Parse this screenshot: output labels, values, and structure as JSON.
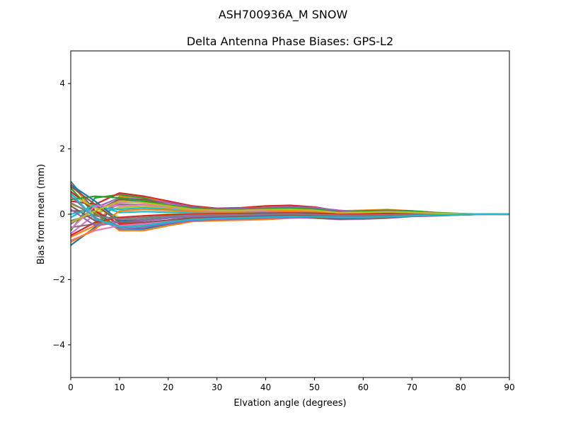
{
  "chart_data": {
    "type": "line",
    "suptitle": "ASH700936A_M    SNOW",
    "title": "Delta Antenna Phase Biases: GPS-L2",
    "xlabel": "Elvation angle (degrees)",
    "ylabel": "Bias from mean (mm)",
    "xlim": [
      0,
      90
    ],
    "ylim": [
      -5,
      5
    ],
    "xticks": [
      0,
      10,
      20,
      30,
      40,
      50,
      60,
      70,
      80,
      90
    ],
    "yticks": [
      -4,
      -2,
      0,
      2,
      4
    ],
    "ytick_labels": [
      "−4",
      "−2",
      "0",
      "2",
      "4"
    ],
    "grid": false,
    "colors": [
      "#1f77b4",
      "#ff7f0e",
      "#2ca02c",
      "#d62728",
      "#9467bd",
      "#8c564b",
      "#e377c2",
      "#7f7f7f",
      "#bcbd22",
      "#17becf"
    ],
    "x": [
      0,
      5,
      10,
      15,
      20,
      25,
      30,
      35,
      40,
      45,
      50,
      55,
      60,
      65,
      70,
      75,
      80,
      85,
      90
    ],
    "series": [
      {
        "values": [
          -0.95,
          -0.4,
          0.45,
          0.4,
          0.25,
          0.15,
          0.12,
          0.12,
          0.15,
          0.18,
          0.15,
          0.08,
          0.1,
          0.12,
          0.08,
          0.04,
          0.01,
          0,
          0
        ]
      },
      {
        "values": [
          -0.7,
          -0.35,
          0.55,
          0.5,
          0.35,
          0.2,
          0.15,
          0.15,
          0.2,
          0.22,
          0.18,
          0.1,
          0.12,
          0.14,
          0.1,
          0.05,
          0.01,
          0,
          0
        ]
      },
      {
        "values": [
          -0.5,
          0.5,
          0.6,
          0.5,
          0.3,
          0.18,
          0.12,
          0.14,
          0.18,
          0.2,
          0.16,
          0.08,
          0.1,
          0.12,
          0.1,
          0.05,
          0.02,
          0,
          0
        ]
      },
      {
        "values": [
          0.4,
          0.3,
          0.65,
          0.55,
          0.4,
          0.25,
          0.18,
          0.2,
          0.25,
          0.27,
          0.22,
          0.1,
          0.05,
          0.02,
          -0.02,
          -0.04,
          -0.02,
          0,
          0
        ]
      },
      {
        "values": [
          -0.3,
          0.2,
          0.5,
          0.45,
          0.35,
          0.22,
          0.16,
          0.18,
          0.2,
          0.22,
          0.2,
          0.12,
          0.06,
          0.03,
          0,
          -0.03,
          -0.02,
          0,
          0
        ]
      },
      {
        "values": [
          0.1,
          0.1,
          0.45,
          0.45,
          0.3,
          0.2,
          0.15,
          0.15,
          0.17,
          0.18,
          0.15,
          0.05,
          0,
          -0.02,
          -0.03,
          -0.03,
          -0.02,
          0,
          0
        ]
      },
      {
        "values": [
          -0.6,
          0.0,
          0.35,
          0.38,
          0.3,
          0.18,
          0.14,
          0.12,
          0.14,
          0.15,
          0.12,
          0.04,
          0.02,
          0.01,
          -0.01,
          -0.02,
          -0.01,
          0,
          0
        ]
      },
      {
        "values": [
          -0.2,
          0.0,
          0.3,
          0.3,
          0.22,
          0.12,
          0.1,
          0.1,
          0.12,
          0.12,
          0.1,
          0.02,
          0.03,
          0.05,
          0.05,
          0.03,
          0.01,
          0,
          0
        ]
      },
      {
        "values": [
          0.3,
          0.05,
          0.2,
          0.25,
          0.18,
          0.1,
          0.08,
          0.08,
          0.1,
          0.1,
          0.08,
          0.02,
          0.04,
          0.06,
          0.05,
          0.03,
          0.01,
          0,
          0
        ]
      },
      {
        "values": [
          0.0,
          0.2,
          0.15,
          0.2,
          0.15,
          0.08,
          0.06,
          0.05,
          0.07,
          0.08,
          0.05,
          0.0,
          0.02,
          0.04,
          0.03,
          0.02,
          0.0,
          0,
          0
        ]
      },
      {
        "values": [
          1.0,
          0.1,
          -0.45,
          -0.45,
          -0.3,
          -0.2,
          -0.18,
          -0.15,
          -0.15,
          -0.1,
          -0.08,
          -0.05,
          -0.08,
          -0.08,
          -0.05,
          -0.03,
          -0.01,
          0,
          0
        ]
      },
      {
        "values": [
          0.95,
          0.05,
          -0.5,
          -0.5,
          -0.35,
          -0.22,
          -0.2,
          -0.18,
          -0.16,
          -0.12,
          -0.1,
          -0.08,
          -0.1,
          -0.1,
          -0.06,
          -0.03,
          -0.01,
          0,
          0
        ]
      },
      {
        "values": [
          0.8,
          0.0,
          -0.4,
          -0.35,
          -0.25,
          -0.18,
          -0.15,
          -0.12,
          -0.1,
          -0.08,
          -0.06,
          -0.04,
          -0.06,
          -0.05,
          -0.03,
          -0.02,
          0,
          0,
          0
        ]
      },
      {
        "values": [
          0.7,
          0.1,
          -0.3,
          -0.3,
          -0.22,
          -0.15,
          -0.12,
          -0.1,
          -0.08,
          -0.05,
          -0.04,
          -0.02,
          -0.03,
          -0.03,
          -0.02,
          -0.01,
          0,
          0,
          0
        ]
      },
      {
        "values": [
          0.55,
          -0.1,
          -0.45,
          -0.4,
          -0.28,
          -0.2,
          -0.16,
          -0.14,
          -0.12,
          -0.1,
          -0.12,
          -0.16,
          -0.15,
          -0.12,
          -0.07,
          -0.05,
          -0.02,
          0,
          0
        ]
      },
      {
        "values": [
          0.25,
          -0.2,
          -0.35,
          -0.3,
          -0.2,
          -0.14,
          -0.1,
          -0.08,
          -0.06,
          -0.05,
          -0.1,
          -0.14,
          -0.12,
          -0.1,
          -0.06,
          -0.04,
          -0.02,
          0,
          0
        ]
      },
      {
        "values": [
          -0.8,
          -0.5,
          -0.35,
          -0.3,
          -0.2,
          -0.12,
          -0.1,
          -0.08,
          -0.05,
          -0.04,
          -0.06,
          -0.08,
          -0.08,
          -0.06,
          -0.04,
          -0.02,
          -0.01,
          0,
          0
        ]
      },
      {
        "values": [
          -0.4,
          -0.3,
          -0.2,
          -0.15,
          -0.1,
          -0.05,
          -0.03,
          -0.02,
          0.0,
          0.02,
          0.0,
          -0.02,
          -0.02,
          -0.02,
          -0.01,
          0,
          0,
          0,
          0
        ]
      },
      {
        "values": [
          0.6,
          0.2,
          -0.1,
          -0.05,
          0.0,
          0.02,
          0.03,
          0.03,
          0.04,
          0.05,
          0.03,
          0.0,
          -0.01,
          -0.01,
          0,
          0,
          0,
          0,
          0
        ]
      },
      {
        "values": [
          -0.1,
          0.3,
          0.05,
          0.08,
          0.06,
          0.05,
          0.05,
          0.05,
          0.06,
          0.08,
          0.06,
          0.02,
          0.0,
          0.0,
          0.0,
          0.0,
          0,
          0,
          0
        ]
      },
      {
        "values": [
          0.9,
          0.4,
          -0.2,
          -0.2,
          -0.12,
          -0.08,
          -0.06,
          -0.05,
          -0.04,
          -0.03,
          -0.02,
          -0.02,
          -0.02,
          -0.01,
          0,
          0,
          0,
          0,
          0
        ]
      },
      {
        "values": [
          -0.85,
          -0.45,
          0.1,
          0.15,
          0.12,
          0.08,
          0.07,
          0.07,
          0.09,
          0.1,
          0.08,
          0.03,
          0.05,
          0.06,
          0.05,
          0.02,
          0.01,
          0,
          0
        ]
      },
      {
        "values": [
          0.45,
          0.55,
          0.5,
          0.4,
          0.28,
          0.18,
          0.14,
          0.14,
          0.16,
          0.18,
          0.16,
          0.06,
          0.08,
          0.1,
          0.08,
          0.04,
          0.01,
          0,
          0
        ]
      },
      {
        "values": [
          -0.65,
          -0.25,
          -0.1,
          -0.05,
          -0.02,
          0.0,
          0.01,
          0.02,
          0.03,
          0.04,
          0.03,
          0.0,
          0.01,
          0.02,
          0.02,
          0.01,
          0,
          0,
          0
        ]
      },
      {
        "values": [
          0.15,
          -0.35,
          -0.25,
          -0.2,
          -0.12,
          -0.08,
          -0.06,
          -0.05,
          -0.03,
          -0.02,
          -0.04,
          -0.06,
          -0.05,
          -0.04,
          -0.03,
          -0.02,
          -0.01,
          0,
          0
        ]
      },
      {
        "values": [
          0.85,
          0.3,
          -0.25,
          -0.25,
          -0.18,
          -0.12,
          -0.1,
          -0.08,
          -0.06,
          -0.04,
          -0.03,
          -0.03,
          -0.04,
          -0.03,
          -0.02,
          -0.01,
          0,
          0,
          0
        ]
      },
      {
        "values": [
          -0.45,
          0.25,
          0.25,
          0.3,
          0.22,
          0.14,
          0.1,
          0.1,
          0.12,
          0.14,
          0.12,
          0.05,
          0.06,
          0.08,
          0.06,
          0.03,
          0.01,
          0,
          0
        ]
      },
      {
        "values": [
          0.35,
          -0.05,
          -0.15,
          -0.1,
          -0.06,
          -0.03,
          -0.02,
          -0.01,
          0.0,
          0.01,
          -0.01,
          -0.03,
          -0.03,
          -0.02,
          -0.01,
          0,
          0,
          0,
          0
        ]
      },
      {
        "values": [
          -0.25,
          0.1,
          0.4,
          0.35,
          0.25,
          0.15,
          0.12,
          0.12,
          0.14,
          0.15,
          0.12,
          0.04,
          0.05,
          0.07,
          0.05,
          0.03,
          0.01,
          0,
          0
        ]
      },
      {
        "values": [
          0.65,
          -0.15,
          -0.38,
          -0.35,
          -0.24,
          -0.16,
          -0.13,
          -0.11,
          -0.09,
          -0.07,
          -0.08,
          -0.1,
          -0.1,
          -0.08,
          -0.05,
          -0.03,
          -0.01,
          0,
          0
        ]
      }
    ]
  }
}
